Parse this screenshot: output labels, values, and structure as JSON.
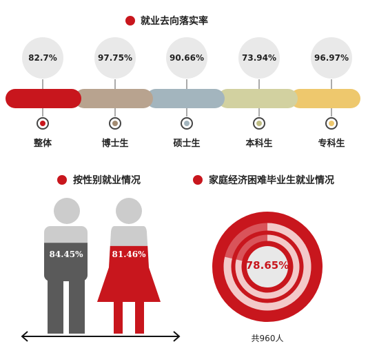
{
  "section1": {
    "title": "就业去向落实率",
    "items": [
      {
        "label": "整体",
        "value": "82.7%",
        "color": "#c8161d",
        "marker_color": "#c8161d"
      },
      {
        "label": "博士生",
        "value": "97.75%",
        "color": "#b8a38f",
        "marker_color": "#a28b72"
      },
      {
        "label": "硕士生",
        "value": "90.66%",
        "color": "#a3b5be",
        "marker_color": "#a3b5be"
      },
      {
        "label": "本科生",
        "value": "73.94%",
        "color": "#d2d1a0",
        "marker_color": "#c0be86"
      },
      {
        "label": "专科生",
        "value": "96.97%",
        "color": "#eec86d",
        "marker_color": "#eec86d"
      }
    ]
  },
  "section2": {
    "title": "按性别就业情况",
    "male_value": "84.45%",
    "female_value": "81.46%",
    "male_color": "#5a5a5a",
    "female_color": "#c8161d"
  },
  "section3": {
    "title": "家庭经济困难毕业生就业情况",
    "value": "78.65%",
    "total": "共960人",
    "color": "#c8161d"
  },
  "chart_data": [
    {
      "type": "bar",
      "title": "就业去向落实率",
      "categories": [
        "整体",
        "博士生",
        "硕士生",
        "本科生",
        "专科生"
      ],
      "values": [
        82.7,
        97.75,
        90.66,
        73.94,
        96.97
      ]
    },
    {
      "type": "bar",
      "title": "按性别就业情况",
      "values": [
        84.45,
        81.46
      ]
    },
    {
      "type": "pie",
      "title": "家庭经济困难毕业生就业情况",
      "values": [
        78.65
      ]
    }
  ]
}
